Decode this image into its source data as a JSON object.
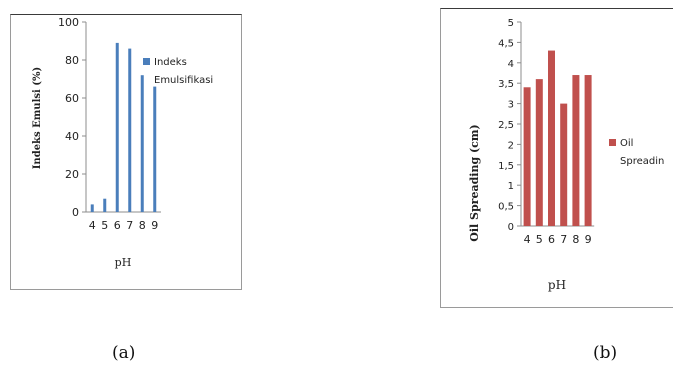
{
  "captions": {
    "a": "(a)",
    "b": "(b)"
  },
  "chart_data": [
    {
      "type": "bar",
      "categories": [
        "4",
        "5",
        "6",
        "7",
        "8",
        "9"
      ],
      "series": [
        {
          "name": "Indeks Emulsifikasi",
          "values": [
            4,
            7,
            89,
            86,
            72,
            66
          ],
          "color": "#4a7ebb"
        }
      ],
      "xlabel": "pH",
      "ylabel": "Indeks Emulsi (%)",
      "ylim": [
        0,
        100
      ],
      "yticks": [
        "0",
        "20",
        "40",
        "60",
        "80",
        "100"
      ],
      "legend_label_lines": [
        "Indeks",
        "Emulsifikasi"
      ],
      "legend": "right",
      "grid": false
    },
    {
      "type": "bar",
      "categories": [
        "4",
        "5",
        "6",
        "7",
        "8",
        "9"
      ],
      "series": [
        {
          "name": "Oil Spreading",
          "values": [
            3.4,
            3.6,
            4.3,
            3.0,
            3.7,
            3.7
          ],
          "color": "#c0504d"
        }
      ],
      "xlabel": "pH",
      "ylabel": "Oil Spreading (cm)",
      "ylim": [
        0,
        5
      ],
      "yticks": [
        "0",
        "0,5",
        "1",
        "1,5",
        "2",
        "2,5",
        "3",
        "3,5",
        "4",
        "4,5",
        "5"
      ],
      "legend_label_lines": [
        "Oil",
        "Spreadin"
      ],
      "legend": "right",
      "grid": false
    }
  ]
}
